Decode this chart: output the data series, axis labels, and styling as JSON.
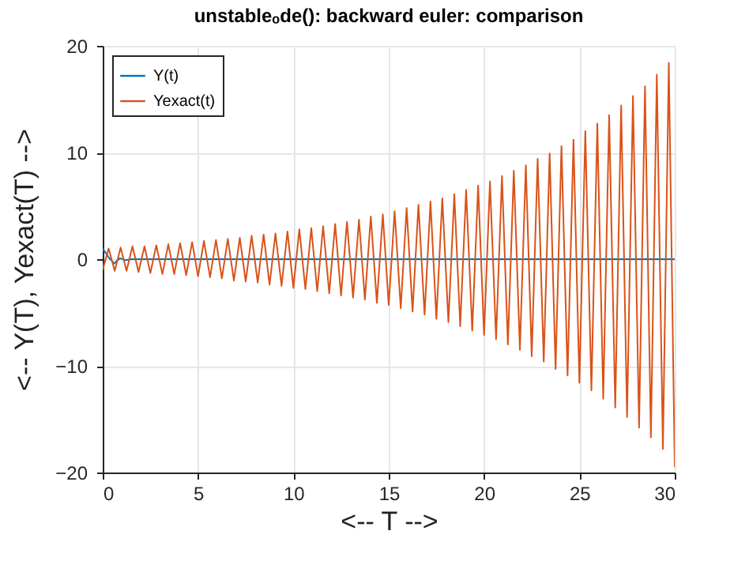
{
  "chart_data": {
    "type": "line",
    "title": "unstableₒde(): backward euler: comparison",
    "xlabel": "<-- T -->",
    "ylabel": "<-- Y(T), Yexact(T) -->",
    "xlim": [
      0,
      30
    ],
    "xticks": [
      0,
      5,
      10,
      15,
      20,
      25,
      30
    ],
    "ylim": [
      -20,
      20
    ],
    "yticks": [
      -20,
      -10,
      0,
      10,
      20
    ],
    "grid": true,
    "legend": "top left",
    "marker": "none",
    "line_style": "solid",
    "series": [
      {
        "name": "Y(t)",
        "color": "#0072bd",
        "x": [
          0,
          0.3,
          0.6,
          0.9,
          1.2,
          1.5,
          2,
          30
        ],
        "values": [
          1,
          0.2,
          -0.4,
          0.1,
          -0.1,
          0,
          0,
          0
        ]
      },
      {
        "name": "Yexact(t)",
        "color": "#d95319",
        "x": [
          0,
          0.31,
          0.63,
          0.94,
          1.25,
          1.56,
          1.88,
          2.19,
          2.5,
          2.81,
          3.13,
          3.44,
          3.75,
          4.06,
          4.38,
          4.69,
          5,
          5.31,
          5.63,
          5.94,
          6.25,
          6.56,
          6.88,
          7.19,
          7.5,
          7.81,
          8.13,
          8.44,
          8.75,
          9.06,
          9.38,
          9.69,
          10,
          10.31,
          10.63,
          10.94,
          11.25,
          11.56,
          11.88,
          12.19,
          12.5,
          12.81,
          13.13,
          13.44,
          13.75,
          14.06,
          14.38,
          14.69,
          15,
          15.31,
          15.63,
          15.94,
          16.25,
          16.56,
          16.88,
          17.19,
          17.5,
          17.81,
          18.13,
          18.44,
          18.75,
          19.06,
          19.38,
          19.69,
          20,
          20.31,
          20.63,
          20.94,
          21.25,
          21.56,
          21.88,
          22.19,
          22.5,
          22.81,
          23.13,
          23.44,
          23.75,
          24.06,
          24.38,
          24.69,
          25,
          25.31,
          25.63,
          25.94,
          26.25,
          26.56,
          26.88,
          27.19,
          27.5,
          27.81,
          28.13,
          28.44,
          28.75,
          29.06,
          29.38,
          29.69,
          30
        ],
        "values": [
          -1.0,
          1.0,
          -1.1,
          1.1,
          -1.1,
          1.2,
          -1.2,
          1.2,
          -1.3,
          1.3,
          -1.4,
          1.4,
          -1.4,
          1.5,
          -1.5,
          1.6,
          -1.6,
          1.7,
          -1.7,
          1.8,
          -1.8,
          1.9,
          -2.0,
          2.0,
          -2.1,
          2.2,
          -2.2,
          2.3,
          -2.4,
          2.4,
          -2.5,
          2.6,
          -2.7,
          2.8,
          -2.8,
          2.9,
          -3.0,
          3.1,
          -3.2,
          3.3,
          -3.4,
          3.5,
          -3.6,
          3.7,
          -3.8,
          4.0,
          -4.1,
          4.2,
          -4.3,
          4.5,
          -4.6,
          4.8,
          -4.9,
          5.1,
          -5.2,
          5.4,
          -5.6,
          5.7,
          -5.9,
          6.1,
          -6.3,
          6.5,
          -6.7,
          6.9,
          -7.1,
          7.3,
          -7.5,
          7.8,
          -8.0,
          8.3,
          -8.5,
          8.8,
          -9.1,
          9.4,
          -9.6,
          9.9,
          -10.3,
          10.6,
          -10.9,
          11.2,
          -11.6,
          12.0,
          -12.3,
          12.7,
          -13.1,
          13.5,
          -13.9,
          14.4,
          -14.8,
          15.3,
          -15.8,
          16.2,
          -16.7,
          17.3,
          -17.8,
          18.4,
          -19.5
        ]
      }
    ]
  }
}
